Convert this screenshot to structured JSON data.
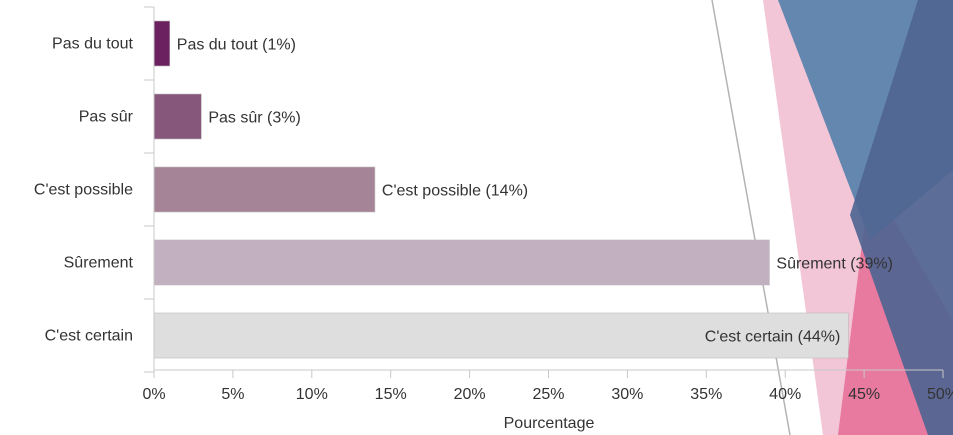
{
  "chart_data": {
    "type": "bar",
    "orientation": "horizontal",
    "categories": [
      "Pas du tout",
      "Pas sûr",
      "C'est possible",
      "Sûrement",
      "C'est certain"
    ],
    "values": [
      1,
      3,
      14,
      39,
      44
    ],
    "data_labels": [
      "Pas du tout (1%)",
      "Pas sûr (3%)",
      "C'est possible (14%)",
      "Sûrement (39%)",
      "C'est certain (44%)"
    ],
    "bar_colors": [
      "#6b2060",
      "#87577b",
      "#a68498",
      "#c2afbf",
      "#dedede"
    ],
    "title": "",
    "xlabel": "Pourcentage",
    "ylabel": "",
    "xlim": [
      0,
      50
    ],
    "xticks": [
      "0%",
      "5%",
      "10%",
      "15%",
      "20%",
      "25%",
      "30%",
      "35%",
      "40%",
      "45%",
      "50%"
    ],
    "grid": false,
    "legend": "none"
  },
  "decoration_colors": {
    "blue_dark": "#4f6591",
    "blue_light": "#5c84ad",
    "pink_light": "#f2c6d6",
    "pink_mid": "#e8799f",
    "diagonal_line": "#b3b3b3"
  }
}
